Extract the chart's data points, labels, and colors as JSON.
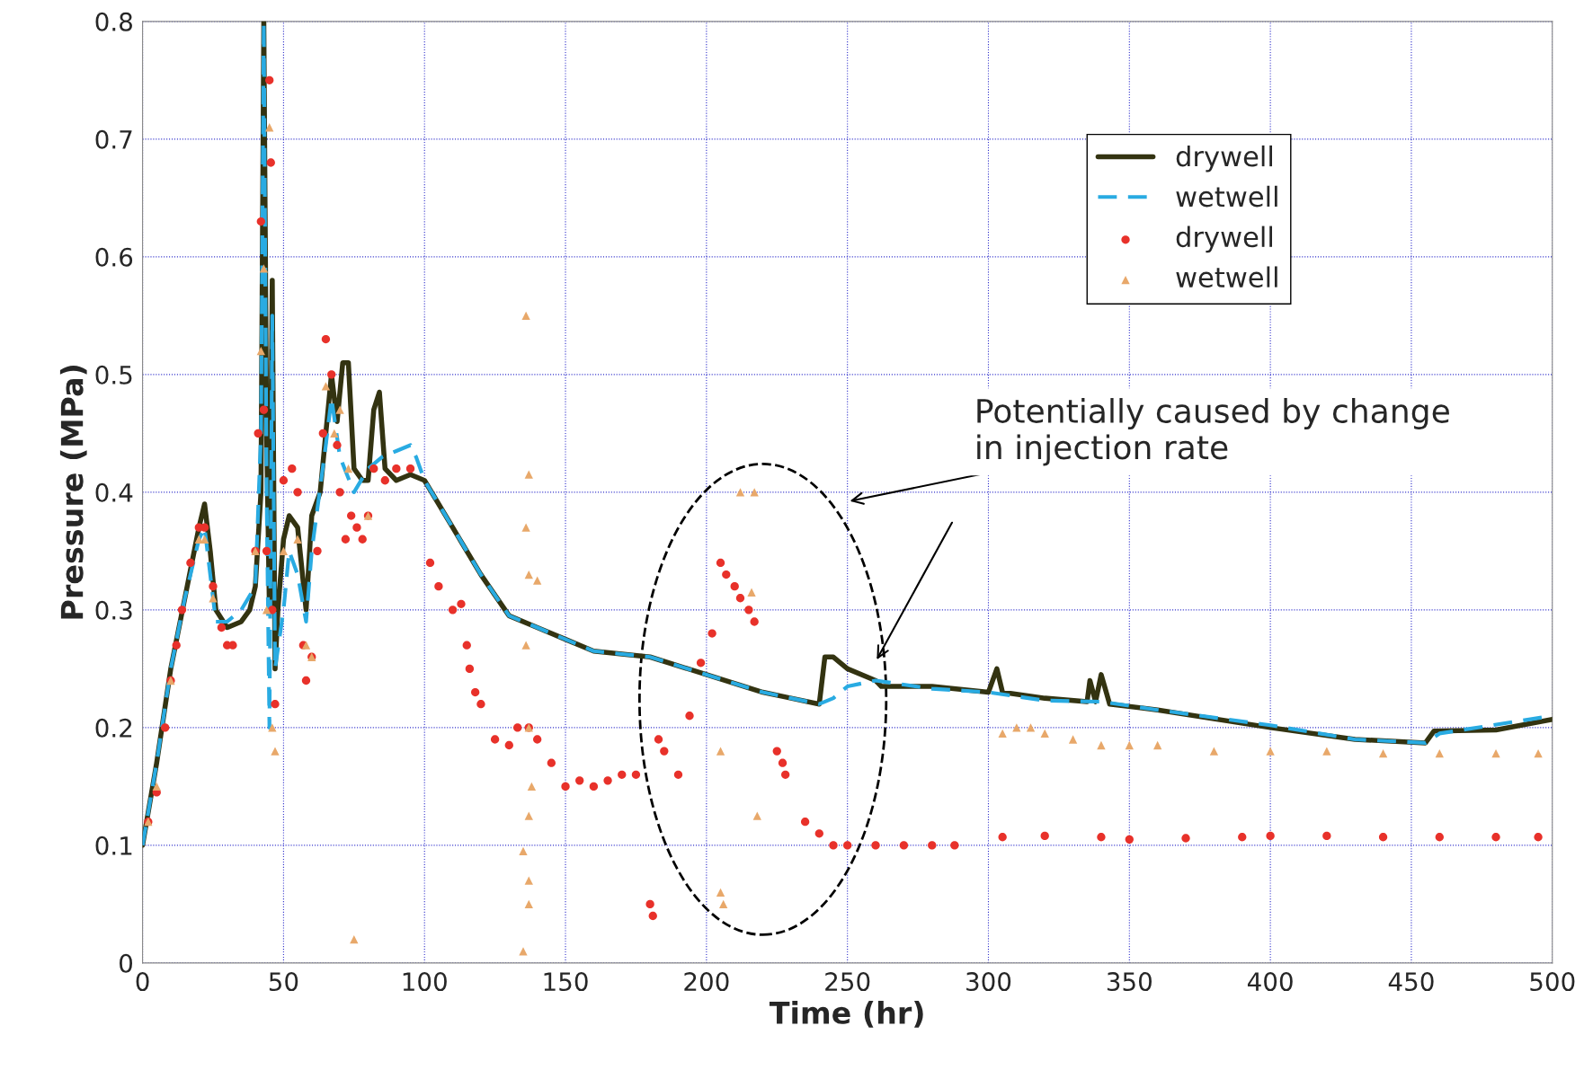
{
  "chart_data": {
    "type": "line",
    "xlabel": "Time (hr)",
    "ylabel": "Pressure (MPa)",
    "xlim": [
      0,
      500
    ],
    "xticks": [
      0,
      50,
      100,
      150,
      200,
      250,
      300,
      350,
      400,
      450,
      500
    ],
    "ylim": [
      0,
      0.8
    ],
    "yticks": [
      0,
      0.1,
      0.2,
      0.3,
      0.4,
      0.5,
      0.6,
      0.7,
      0.8
    ],
    "grid": true,
    "legend": "top right",
    "annotations": [
      "Potentially caused by change in injection rate"
    ],
    "series": [
      {
        "name": "drywell",
        "color": "#333311",
        "line_style": "solid",
        "marker": "none",
        "x": [
          0,
          5,
          10,
          15,
          20,
          22,
          24,
          26,
          30,
          35,
          38,
          40,
          42,
          43,
          44,
          45,
          46,
          47,
          48,
          50,
          52,
          55,
          58,
          60,
          63,
          65,
          67,
          69,
          71,
          73,
          75,
          78,
          80,
          82,
          84,
          86,
          90,
          95,
          100,
          110,
          120,
          130,
          140,
          150,
          160,
          180,
          200,
          220,
          230,
          240,
          242,
          245,
          250,
          260,
          262,
          280,
          300,
          303,
          305,
          320,
          335,
          336,
          338,
          340,
          343,
          360,
          400,
          430,
          455,
          458,
          480,
          500
        ],
        "values": [
          0.1,
          0.17,
          0.25,
          0.31,
          0.37,
          0.39,
          0.35,
          0.3,
          0.285,
          0.29,
          0.3,
          0.32,
          0.4,
          0.8,
          0.45,
          0.3,
          0.58,
          0.25,
          0.3,
          0.36,
          0.38,
          0.37,
          0.3,
          0.38,
          0.4,
          0.45,
          0.5,
          0.46,
          0.51,
          0.51,
          0.42,
          0.41,
          0.41,
          0.47,
          0.485,
          0.42,
          0.41,
          0.415,
          0.41,
          0.37,
          0.33,
          0.295,
          0.285,
          0.275,
          0.265,
          0.26,
          0.245,
          0.23,
          0.225,
          0.22,
          0.26,
          0.26,
          0.25,
          0.24,
          0.235,
          0.235,
          0.23,
          0.25,
          0.23,
          0.225,
          0.222,
          0.24,
          0.222,
          0.245,
          0.22,
          0.215,
          0.2,
          0.19,
          0.187,
          0.197,
          0.198,
          0.207
        ]
      },
      {
        "name": "wetwell",
        "color": "#29abe2",
        "line_style": "dashed",
        "marker": "none",
        "x": [
          0,
          5,
          10,
          15,
          20,
          22,
          26,
          30,
          35,
          40,
          42,
          43,
          44,
          45,
          46,
          47,
          50,
          52,
          55,
          58,
          60,
          65,
          67,
          70,
          75,
          80,
          85,
          90,
          95,
          97,
          100,
          110,
          120,
          130,
          140,
          150,
          160,
          180,
          200,
          220,
          230,
          240,
          245,
          250,
          260,
          280,
          300,
          320,
          340,
          360,
          400,
          430,
          455,
          460,
          500
        ],
        "values": [
          0.1,
          0.17,
          0.25,
          0.31,
          0.36,
          0.37,
          0.29,
          0.29,
          0.3,
          0.32,
          0.45,
          0.8,
          0.4,
          0.2,
          0.55,
          0.25,
          0.3,
          0.35,
          0.33,
          0.29,
          0.35,
          0.44,
          0.48,
          0.43,
          0.4,
          0.42,
          0.43,
          0.435,
          0.44,
          0.43,
          0.41,
          0.37,
          0.33,
          0.295,
          0.285,
          0.275,
          0.265,
          0.26,
          0.245,
          0.23,
          0.225,
          0.22,
          0.225,
          0.235,
          0.24,
          0.233,
          0.23,
          0.223,
          0.222,
          0.215,
          0.202,
          0.19,
          0.187,
          0.195,
          0.21
        ]
      },
      {
        "name": "drywell",
        "type": "scatter",
        "color": "#e8312a",
        "marker": "circle",
        "x": [
          2,
          5,
          8,
          10,
          12,
          14,
          17,
          20,
          22,
          25,
          28,
          30,
          32,
          40,
          41,
          42,
          43,
          44,
          45,
          45.5,
          46,
          47,
          50,
          53,
          55,
          57,
          58,
          60,
          62,
          64,
          65,
          67,
          69,
          70,
          72,
          74,
          76,
          78,
          80,
          82,
          86,
          90,
          95,
          102,
          105,
          110,
          113,
          115,
          116,
          118,
          120,
          125,
          130,
          133,
          137,
          140,
          145,
          150,
          155,
          160,
          165,
          170,
          175,
          180,
          181,
          183,
          185,
          190,
          194,
          198,
          202,
          205,
          207,
          210,
          212,
          215,
          217,
          225,
          227,
          228,
          235,
          240,
          245,
          250,
          260,
          270,
          280,
          288,
          305,
          320,
          340,
          350,
          370,
          390,
          400,
          420,
          440,
          460,
          480,
          495
        ],
        "values": [
          0.12,
          0.145,
          0.2,
          0.24,
          0.27,
          0.3,
          0.34,
          0.37,
          0.37,
          0.32,
          0.285,
          0.27,
          0.27,
          0.35,
          0.45,
          0.63,
          0.47,
          0.35,
          0.75,
          0.68,
          0.3,
          0.22,
          0.41,
          0.42,
          0.4,
          0.27,
          0.24,
          0.26,
          0.35,
          0.45,
          0.53,
          0.5,
          0.44,
          0.4,
          0.36,
          0.38,
          0.37,
          0.36,
          0.38,
          0.42,
          0.41,
          0.42,
          0.42,
          0.34,
          0.32,
          0.3,
          0.305,
          0.27,
          0.25,
          0.23,
          0.22,
          0.19,
          0.185,
          0.2,
          0.2,
          0.19,
          0.17,
          0.15,
          0.155,
          0.15,
          0.155,
          0.16,
          0.16,
          0.05,
          0.04,
          0.19,
          0.18,
          0.16,
          0.21,
          0.255,
          0.28,
          0.34,
          0.33,
          0.32,
          0.31,
          0.3,
          0.29,
          0.18,
          0.17,
          0.16,
          0.12,
          0.11,
          0.1,
          0.1,
          0.1,
          0.1,
          0.1,
          0.1,
          0.107,
          0.108,
          0.107,
          0.105,
          0.106,
          0.107,
          0.108,
          0.108,
          0.107,
          0.107,
          0.107,
          0.107
        ]
      },
      {
        "name": "wetwell",
        "type": "scatter",
        "color": "#e8a86a",
        "marker": "triangle",
        "x": [
          2,
          5,
          10,
          20,
          22,
          25,
          40,
          42,
          43,
          44,
          45,
          46,
          47,
          50,
          55,
          58,
          60,
          65,
          68,
          70,
          73,
          75,
          80,
          135,
          135,
          136,
          136,
          137,
          136,
          137,
          137,
          138,
          137,
          137,
          137,
          140,
          205,
          205,
          206,
          212,
          216,
          217,
          218,
          305,
          310,
          315,
          320,
          330,
          340,
          350,
          360,
          380,
          400,
          420,
          440,
          460,
          480,
          495
        ],
        "values": [
          0.12,
          0.15,
          0.24,
          0.36,
          0.36,
          0.31,
          0.35,
          0.52,
          0.59,
          0.3,
          0.71,
          0.2,
          0.18,
          0.35,
          0.36,
          0.27,
          0.26,
          0.49,
          0.45,
          0.47,
          0.42,
          0.02,
          0.38,
          0.01,
          0.095,
          0.27,
          0.55,
          0.415,
          0.37,
          0.33,
          0.2,
          0.15,
          0.125,
          0.07,
          0.05,
          0.325,
          0.18,
          0.06,
          0.05,
          0.4,
          0.315,
          0.4,
          0.125,
          0.195,
          0.2,
          0.2,
          0.195,
          0.19,
          0.185,
          0.185,
          0.185,
          0.18,
          0.18,
          0.18,
          0.178,
          0.178,
          0.178,
          0.178
        ]
      }
    ]
  }
}
